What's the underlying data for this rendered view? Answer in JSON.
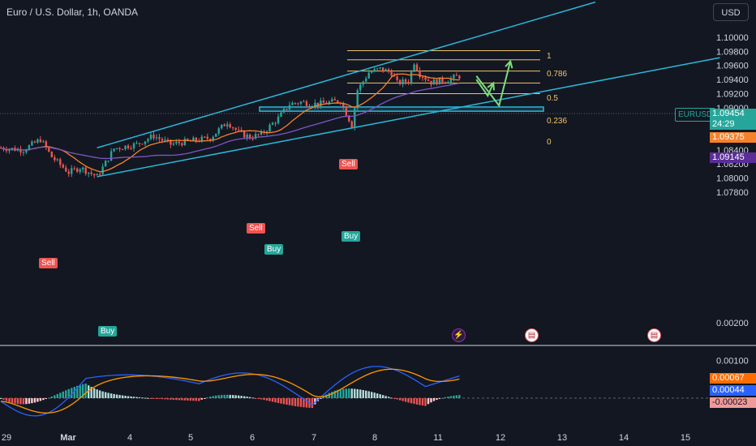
{
  "header": {
    "title": "Euro / U.S. Dollar, 1h, OANDA",
    "currency": "USD"
  },
  "price_tags": {
    "symbol": "EURUSD",
    "last": "1.09454",
    "countdown": "24:29",
    "ma_fast": "1.09375",
    "ma_slow": "1.09145",
    "ind_signal": "0.00067",
    "ind_macd": "0.00044",
    "ind_hist": "-0.00023"
  },
  "colors": {
    "up": "#26a69a",
    "down": "#ef5350",
    "channel": "#2bb7d8",
    "fib": "#f0c46a",
    "ma_fast": "#f5822a",
    "ma_slow": "#7e57c2",
    "macd": "#2962ff",
    "signal": "#ff9800",
    "projection": "#7ddc7d"
  },
  "signals": [
    {
      "label": "Sell",
      "type": "sell"
    },
    {
      "label": "Buy",
      "type": "buy"
    },
    {
      "label": "Sell",
      "type": "sell"
    },
    {
      "label": "Buy",
      "type": "buy"
    },
    {
      "label": "Sell",
      "type": "sell"
    },
    {
      "label": "Buy",
      "type": "buy"
    }
  ],
  "fib_levels": [
    "1",
    "0.786",
    "0.5",
    "0.236",
    "0"
  ],
  "events": [
    "lightning-icon",
    "us-flag-icon",
    "us-flag-icon"
  ],
  "chart_data": [
    {
      "type": "candlestick",
      "title": "Euro / U.S. Dollar, 1h, OANDA",
      "x_tick_labels": [
        "29",
        "Mar",
        "4",
        "5",
        "6",
        "7",
        "8",
        "11",
        "12",
        "13",
        "14",
        "15"
      ],
      "y_tick_labels": [
        "1.10000",
        "1.09800",
        "1.09600",
        "1.09400",
        "1.09200",
        "1.09000",
        "1.08800",
        "1.08600",
        "1.08400",
        "1.08200",
        "1.08000",
        "1.07800"
      ],
      "ylim": [
        1.078,
        1.1015
      ],
      "price_path": [
        {
          "t": 0,
          "p": 1.0843
        },
        {
          "t": 4,
          "p": 1.084
        },
        {
          "t": 7,
          "p": 1.0855
        },
        {
          "t": 9,
          "p": 1.083
        },
        {
          "t": 12,
          "p": 1.0808
        },
        {
          "t": 14,
          "p": 1.0815
        },
        {
          "t": 17,
          "p": 1.0802
        },
        {
          "t": 18,
          "p": 1.0815
        },
        {
          "t": 20,
          "p": 1.0842
        },
        {
          "t": 24,
          "p": 1.0848
        },
        {
          "t": 27,
          "p": 1.086
        },
        {
          "t": 30,
          "p": 1.0848
        },
        {
          "t": 33,
          "p": 1.0852
        },
        {
          "t": 37,
          "p": 1.0857
        },
        {
          "t": 40,
          "p": 1.088
        },
        {
          "t": 42,
          "p": 1.0865
        },
        {
          "t": 44,
          "p": 1.0858
        },
        {
          "t": 46,
          "p": 1.0862
        },
        {
          "t": 49,
          "p": 1.0885
        },
        {
          "t": 51,
          "p": 1.0905
        },
        {
          "t": 53,
          "p": 1.0908
        },
        {
          "t": 56,
          "p": 1.0905
        },
        {
          "t": 60,
          "p": 1.091
        },
        {
          "t": 62,
          "p": 1.0875
        },
        {
          "t": 63,
          "p": 1.0925
        },
        {
          "t": 65,
          "p": 1.095
        },
        {
          "t": 67,
          "p": 1.0955
        },
        {
          "t": 69,
          "p": 1.095
        },
        {
          "t": 70,
          "p": 1.0935
        },
        {
          "t": 72,
          "p": 1.0938
        },
        {
          "t": 73,
          "p": 1.0965
        },
        {
          "t": 74,
          "p": 1.0948
        },
        {
          "t": 76,
          "p": 1.0936
        },
        {
          "t": 79,
          "p": 1.094
        },
        {
          "t": 81,
          "p": 1.0945
        }
      ],
      "channel_upper": [
        {
          "t": 17,
          "p": 1.0843
        },
        {
          "t": 105,
          "p": 1.105
        }
      ],
      "channel_lower": [
        {
          "t": 17,
          "p": 1.0802
        },
        {
          "t": 127,
          "p": 1.0971
        }
      ],
      "support_zone": [
        1.0895,
        1.0901
      ],
      "fibonacci": [
        {
          "level": "1",
          "price": 1.0981
        },
        {
          "level": "0.786",
          "price": 1.0968
        },
        {
          "level": "0.5",
          "price": 1.0952
        },
        {
          "level": "0.236",
          "price": 1.0935
        },
        {
          "level": "0",
          "price": 1.092
        }
      ],
      "projection": [
        {
          "t": 84,
          "p": 1.0945
        },
        {
          "t": 88,
          "p": 1.0903
        },
        {
          "t": 90,
          "p": 1.0966
        }
      ],
      "projection_alt": [
        {
          "t": 84,
          "p": 1.094
        },
        {
          "t": 86,
          "p": 1.0917
        },
        {
          "t": 87,
          "p": 1.0935
        }
      ]
    },
    {
      "type": "macd",
      "y_tick_labels": [
        "0.00200",
        "0.00100"
      ],
      "ylim": [
        -0.0015,
        0.0022
      ],
      "values": {
        "signal": 0.00067,
        "macd": 0.00044,
        "histogram": -0.00023
      }
    }
  ]
}
